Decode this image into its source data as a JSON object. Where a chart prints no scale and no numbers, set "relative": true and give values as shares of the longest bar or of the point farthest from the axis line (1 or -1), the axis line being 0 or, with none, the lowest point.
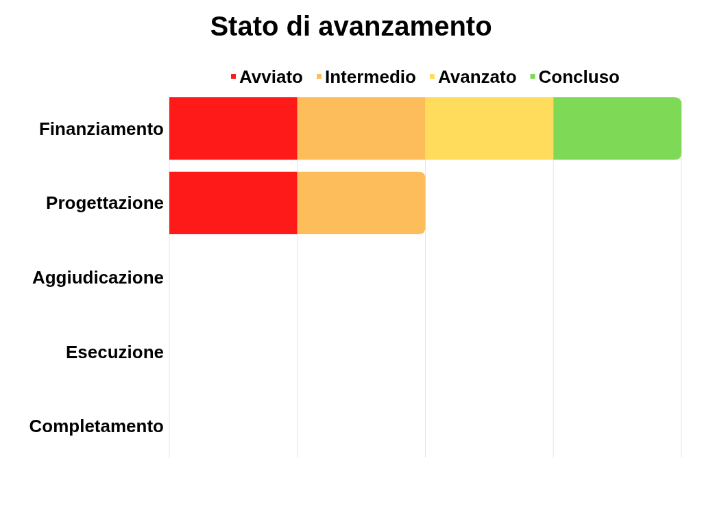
{
  "chart_data": {
    "type": "bar",
    "orientation": "horizontal",
    "stacked": true,
    "relative": true,
    "title": "Stato di avanzamento",
    "categories": [
      "Finanziamento",
      "Progettazione",
      "Aggiudicazione",
      "Esecuzione",
      "Completamento"
    ],
    "series": [
      {
        "name": "Avviato",
        "color": "#ff1a1a",
        "values": [
          0.25,
          0.25,
          0,
          0,
          0
        ]
      },
      {
        "name": "Intermedio",
        "color": "#fdbd5a",
        "values": [
          0.25,
          0.25,
          0,
          0,
          0
        ]
      },
      {
        "name": "Avanzato",
        "color": "#ffdc5c",
        "values": [
          0.25,
          0,
          0,
          0,
          0
        ]
      },
      {
        "name": "Concluso",
        "color": "#7ed957",
        "values": [
          0.25,
          0,
          0,
          0,
          0
        ]
      }
    ],
    "grid": "x",
    "legend": "top"
  }
}
